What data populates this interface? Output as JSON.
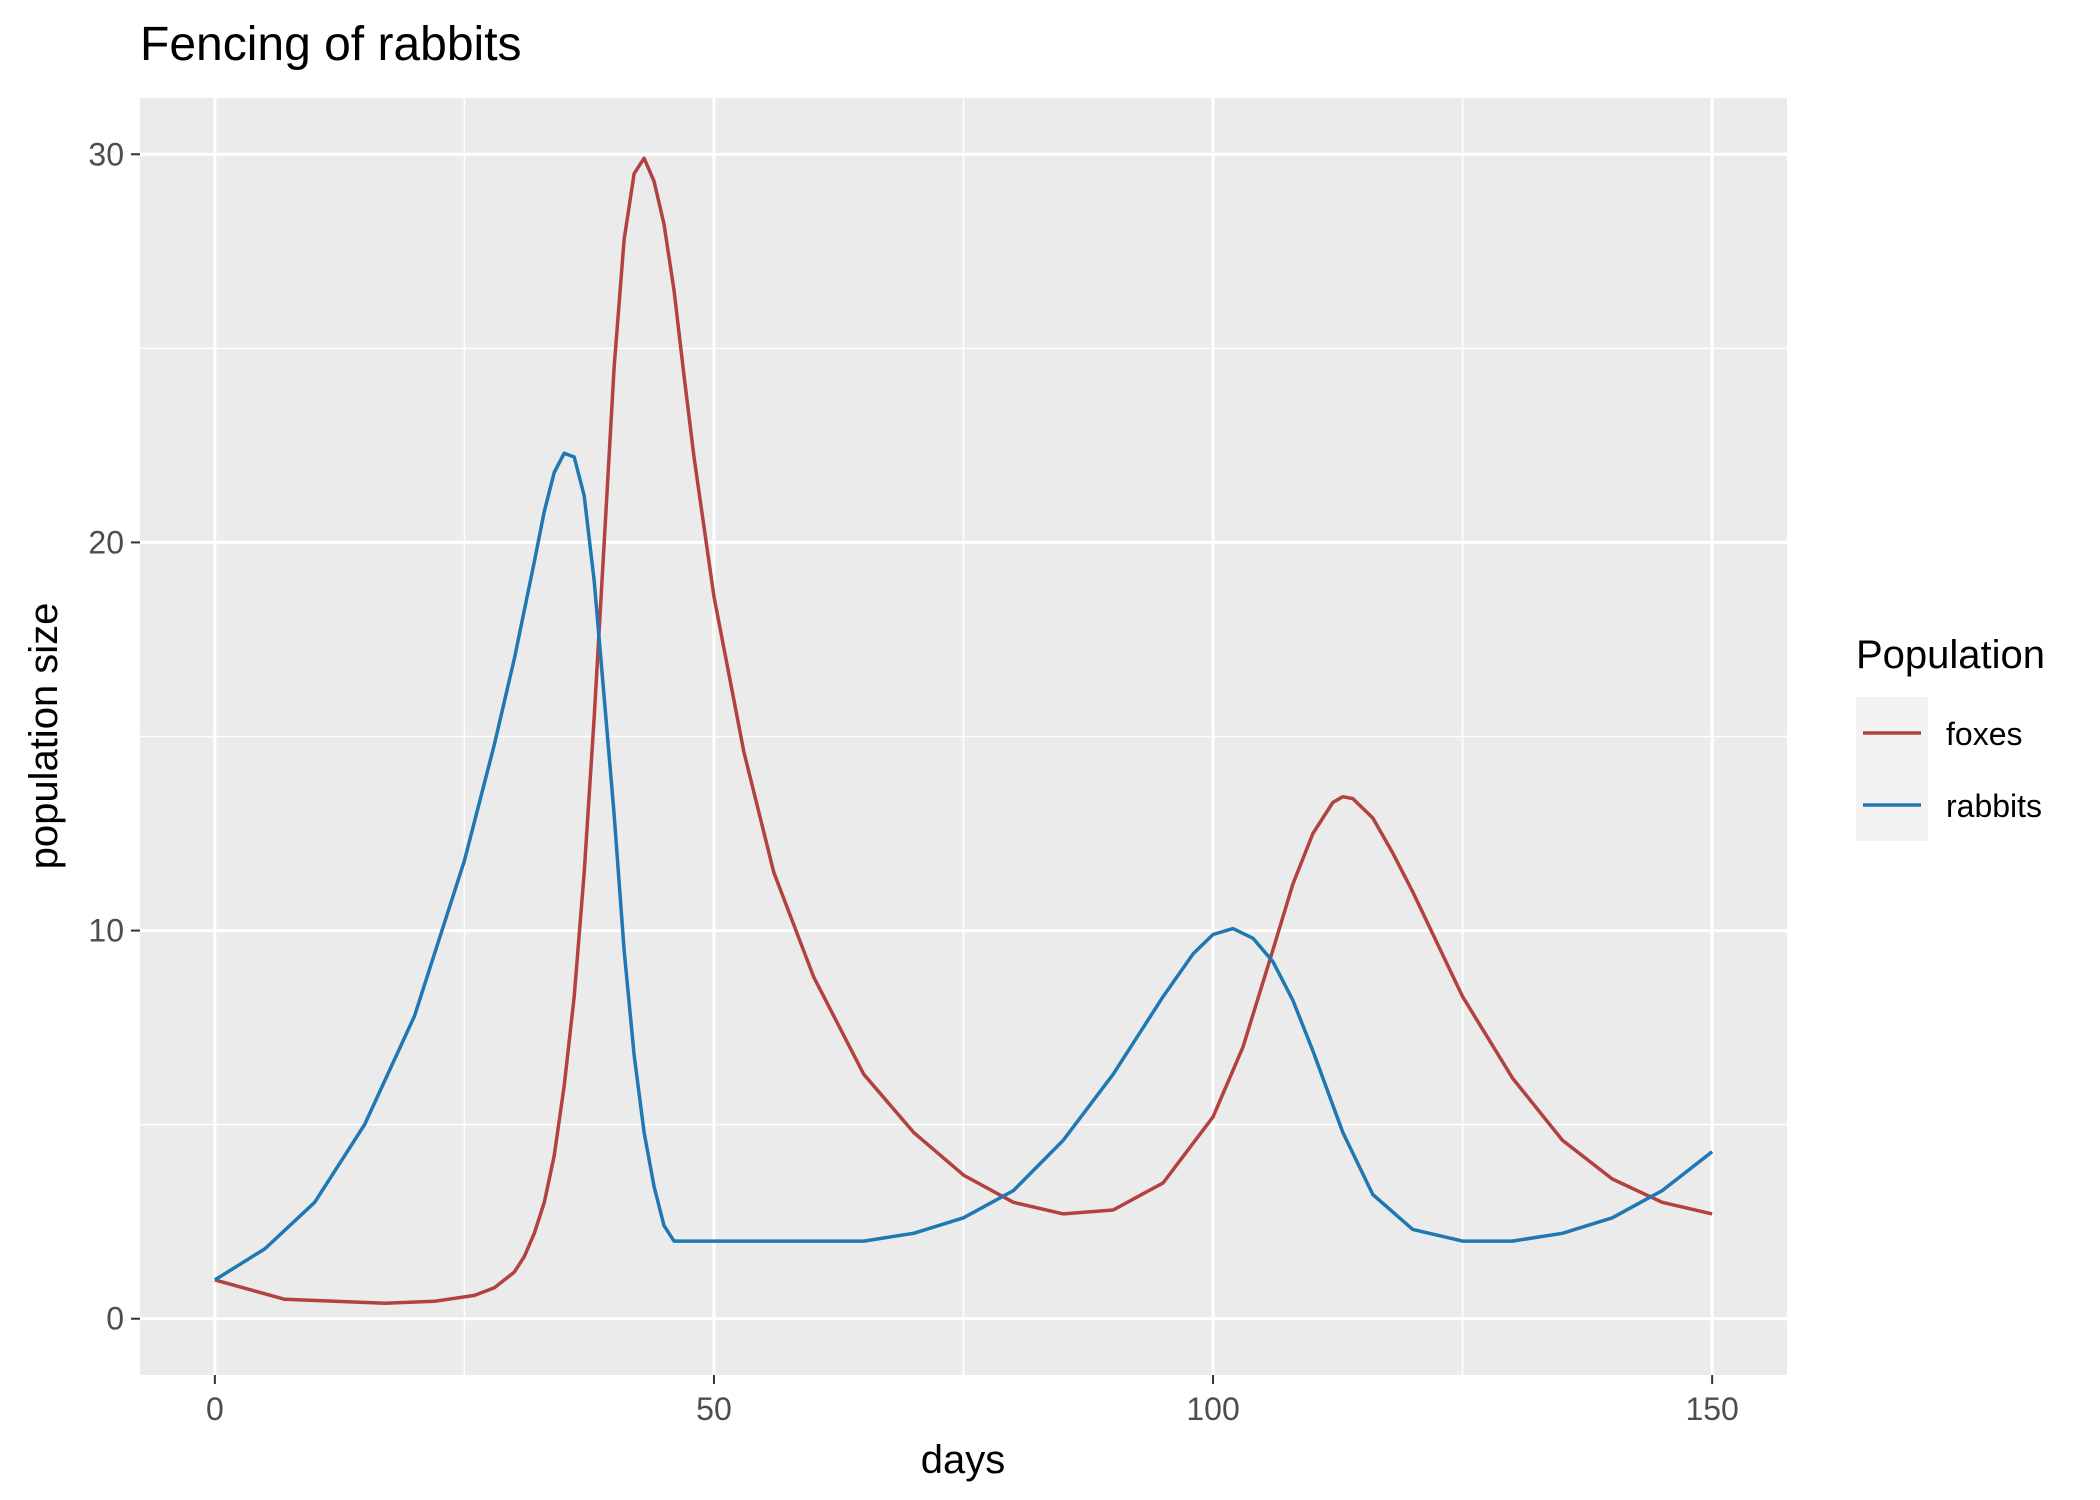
{
  "chart_data": {
    "type": "line",
    "title": "Fencing of rabbits",
    "xlabel": "days",
    "ylabel": "population size",
    "xlim": [
      -7.5,
      157.5
    ],
    "ylim": [
      -1.45,
      31.45
    ],
    "x_ticks": [
      0,
      50,
      100,
      150
    ],
    "y_ticks": [
      0,
      10,
      20,
      30
    ],
    "grid": true,
    "legend": {
      "title": "Population",
      "position": "right"
    },
    "series": [
      {
        "name": "foxes",
        "color": "#b2413f",
        "x": [
          0,
          7,
          17,
          22,
          26,
          28,
          30,
          31,
          32,
          33,
          34,
          35,
          36,
          37,
          38,
          39,
          40,
          41,
          42,
          43,
          44,
          45,
          46,
          47,
          48,
          50,
          53,
          56,
          60,
          65,
          70,
          75,
          80,
          85,
          90,
          95,
          100,
          103,
          106,
          108,
          110,
          112,
          113,
          114,
          116,
          118,
          120,
          125,
          130,
          135,
          140,
          145,
          150
        ],
        "values": [
          1.0,
          0.5,
          0.4,
          0.45,
          0.6,
          0.8,
          1.2,
          1.6,
          2.2,
          3.0,
          4.2,
          6.0,
          8.3,
          11.5,
          15.5,
          20.0,
          24.5,
          27.8,
          29.5,
          29.9,
          29.3,
          28.2,
          26.5,
          24.3,
          22.2,
          18.6,
          14.6,
          11.5,
          8.8,
          6.3,
          4.8,
          3.7,
          3.0,
          2.7,
          2.8,
          3.5,
          5.2,
          7.0,
          9.5,
          11.2,
          12.5,
          13.3,
          13.45,
          13.4,
          12.9,
          12.0,
          11.0,
          8.3,
          6.2,
          4.6,
          3.6,
          3.0,
          2.7
        ]
      },
      {
        "name": "rabbits",
        "color": "#1f77b4",
        "x": [
          0,
          5,
          10,
          15,
          20,
          25,
          28,
          30,
          32,
          33,
          34,
          35,
          36,
          37,
          38,
          39,
          40,
          41,
          42,
          43,
          44,
          45,
          46,
          50,
          55,
          60,
          65,
          70,
          75,
          80,
          85,
          90,
          95,
          98,
          100,
          102,
          104,
          106,
          108,
          110,
          113,
          116,
          120,
          125,
          130,
          135,
          140,
          145,
          150
        ],
        "values": [
          1.0,
          1.8,
          3.0,
          5.0,
          7.8,
          11.8,
          14.8,
          17.0,
          19.5,
          20.8,
          21.8,
          22.3,
          22.2,
          21.2,
          19.0,
          16.0,
          13.0,
          9.5,
          6.8,
          4.8,
          3.4,
          2.4,
          2.0,
          2.0,
          2.0,
          2.0,
          2.0,
          2.2,
          2.6,
          3.3,
          4.6,
          6.3,
          8.3,
          9.4,
          9.9,
          10.05,
          9.8,
          9.2,
          8.2,
          6.9,
          4.8,
          3.2,
          2.3,
          2.0,
          2.0,
          2.2,
          2.6,
          3.3,
          4.3
        ]
      }
    ]
  }
}
